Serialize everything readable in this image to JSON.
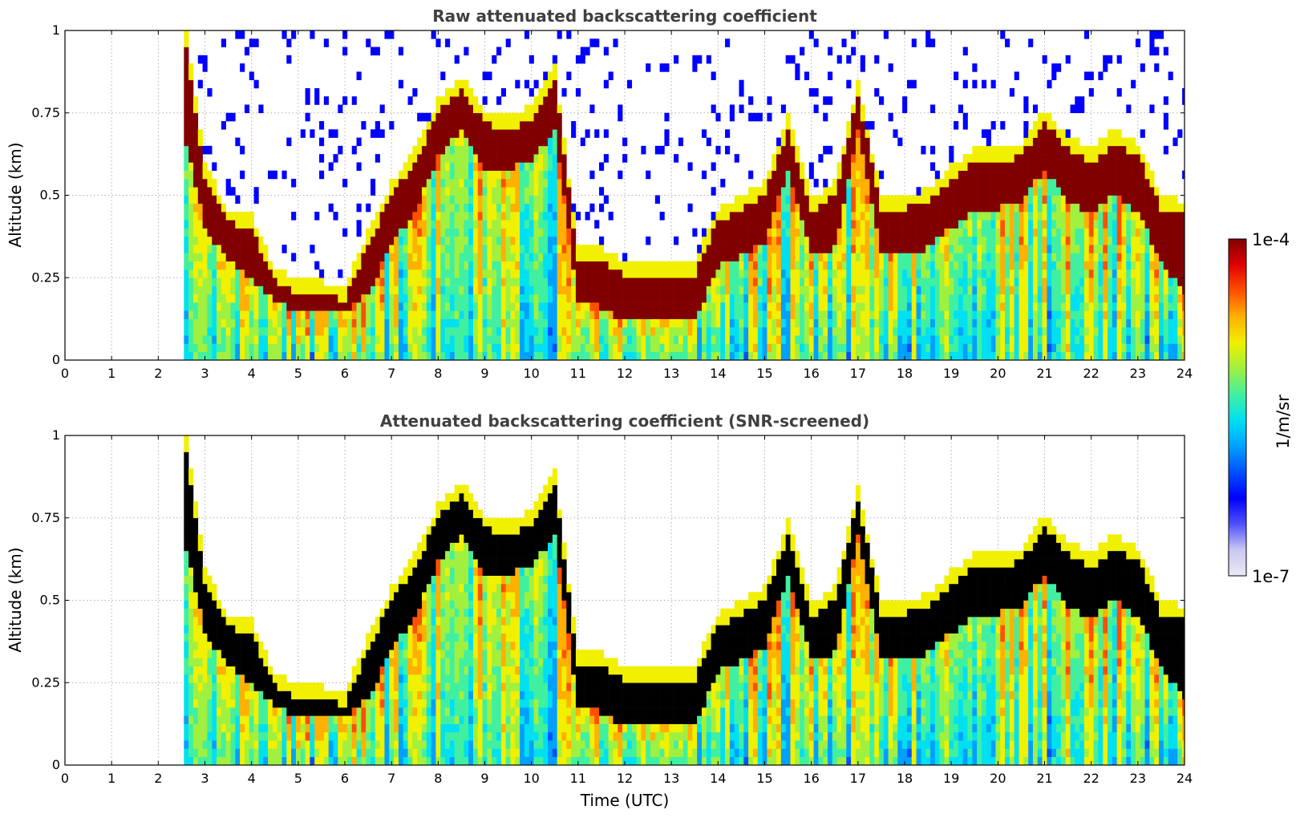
{
  "chart_data": [
    {
      "type": "heatmap",
      "title": "Raw attenuated backscattering coefficient",
      "xlabel": "",
      "ylabel": "Altitude (km)",
      "xlim": [
        0,
        24
      ],
      "ylim": [
        0,
        1
      ],
      "x_ticks": [
        "0",
        "1",
        "2",
        "3",
        "4",
        "5",
        "6",
        "7",
        "8",
        "9",
        "10",
        "11",
        "12",
        "13",
        "14",
        "15",
        "16",
        "17",
        "18",
        "19",
        "20",
        "21",
        "22",
        "23",
        "24"
      ],
      "y_ticks": [
        "0",
        "0.25",
        "0.5",
        "0.75",
        "1"
      ],
      "grid": true,
      "data_start_time": 2.55,
      "profile": {
        "time": [
          2.6,
          3,
          3.5,
          4,
          4.5,
          5,
          5.5,
          6,
          6.5,
          7,
          7.5,
          8,
          8.5,
          9,
          9.5,
          10,
          10.5,
          11,
          11.5,
          12,
          12.5,
          13,
          13.5,
          14,
          14.5,
          15,
          15.5,
          16,
          16.5,
          17,
          17.5,
          18,
          18.5,
          19,
          19.5,
          20,
          20.5,
          21,
          21.5,
          22,
          22.5,
          23,
          23.5,
          24
        ],
        "layer_top_km": [
          0.95,
          0.55,
          0.42,
          0.4,
          0.24,
          0.2,
          0.2,
          0.18,
          0.35,
          0.5,
          0.6,
          0.75,
          0.82,
          0.72,
          0.7,
          0.73,
          0.85,
          0.3,
          0.3,
          0.26,
          0.26,
          0.26,
          0.26,
          0.42,
          0.46,
          0.5,
          0.7,
          0.45,
          0.5,
          0.8,
          0.46,
          0.46,
          0.48,
          0.55,
          0.6,
          0.6,
          0.62,
          0.72,
          0.64,
          0.6,
          0.66,
          0.62,
          0.46,
          0.44
        ],
        "layer_bottom_km": [
          0.65,
          0.4,
          0.3,
          0.24,
          0.18,
          0.14,
          0.14,
          0.14,
          0.2,
          0.35,
          0.45,
          0.62,
          0.7,
          0.58,
          0.58,
          0.6,
          0.7,
          0.18,
          0.16,
          0.12,
          0.12,
          0.12,
          0.12,
          0.28,
          0.32,
          0.36,
          0.58,
          0.32,
          0.34,
          0.7,
          0.32,
          0.32,
          0.34,
          0.4,
          0.45,
          0.46,
          0.48,
          0.58,
          0.48,
          0.44,
          0.5,
          0.45,
          0.3,
          0.2
        ]
      }
    },
    {
      "type": "heatmap",
      "title": "Attenuated backscattering coefficient (SNR-screened)",
      "xlabel": "Time (UTC)",
      "ylabel": "Altitude (km)",
      "xlim": [
        0,
        24
      ],
      "ylim": [
        0,
        1
      ],
      "x_ticks": [
        "0",
        "1",
        "2",
        "3",
        "4",
        "5",
        "6",
        "7",
        "8",
        "9",
        "10",
        "11",
        "12",
        "13",
        "14",
        "15",
        "16",
        "17",
        "18",
        "19",
        "20",
        "21",
        "22",
        "23",
        "24"
      ],
      "y_ticks": [
        "0",
        "0.25",
        "0.5",
        "0.75",
        "1"
      ],
      "grid": true,
      "saturated_color": "#000000",
      "data_start_time": 2.55
    }
  ],
  "colorbar": {
    "label": "1/m/sr",
    "max_label": "1e-4",
    "min_label": "1e-7",
    "scale": "log",
    "range": [
      1e-07,
      0.0001
    ],
    "colors": [
      "#e8e8f8",
      "#c8c8f0",
      "#5050ff",
      "#0000ff",
      "#0050ff",
      "#00a0ff",
      "#00e0f0",
      "#40f0a0",
      "#a0f040",
      "#f0f000",
      "#ffb000",
      "#ff5000",
      "#e00000",
      "#800000"
    ]
  }
}
